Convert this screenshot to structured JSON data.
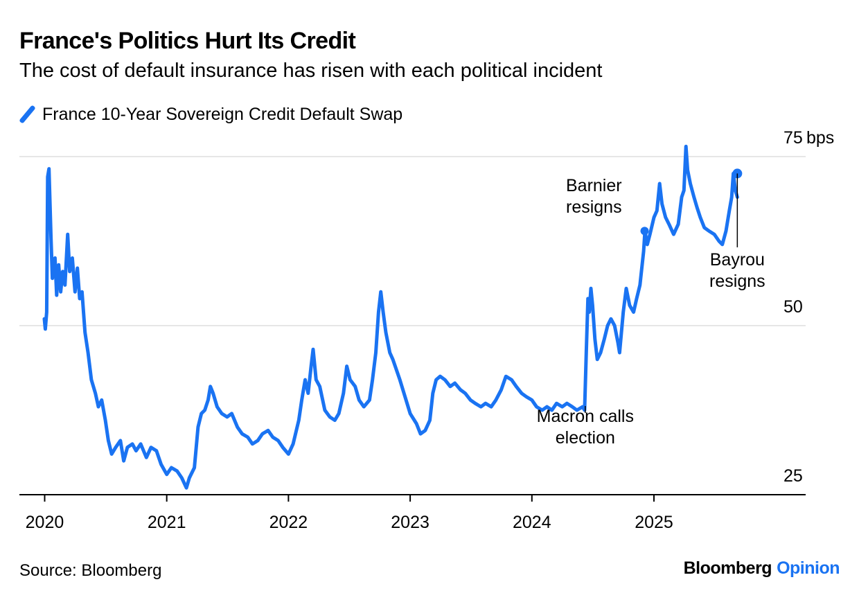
{
  "title": "France's Politics Hurt Its Credit",
  "subtitle": "The cost of default insurance has risen with each political incident",
  "source": "Source: Bloomberg",
  "brand": {
    "name": "Bloomberg",
    "section": "Opinion"
  },
  "colors": {
    "series": "#1a73f2",
    "brand_section": "#1a73f2",
    "grid": "#e6e6e6",
    "axis": "#000000",
    "text": "#000000"
  },
  "chart_data": {
    "type": "line",
    "title": "France's Politics Hurt Its Credit",
    "subtitle": "The cost of default insurance has risen with each political incident",
    "xlabel": "",
    "ylabel": "",
    "y_unit": "bps",
    "ylim": [
      25,
      75
    ],
    "xlim": [
      "2019-10-01",
      "2025-12-31"
    ],
    "y_ticks": [
      {
        "value": 75,
        "label": "75"
      },
      {
        "value": 50,
        "label": "50"
      },
      {
        "value": 25,
        "label": "25"
      }
    ],
    "x_ticks": [
      {
        "date": "2020-01-01",
        "label": "2020"
      },
      {
        "date": "2021-01-01",
        "label": "2021"
      },
      {
        "date": "2022-01-01",
        "label": "2022"
      },
      {
        "date": "2023-01-01",
        "label": "2023"
      },
      {
        "date": "2024-01-01",
        "label": "2024"
      },
      {
        "date": "2025-01-01",
        "label": "2025"
      }
    ],
    "grid": true,
    "legend_position": "top-left",
    "series": [
      {
        "name": "France 10-Year Sovereign Credit Default Swap",
        "color": "#1a73f2",
        "points": [
          [
            "2019-12-31",
            51
          ],
          [
            "2020-01-03",
            49.5
          ],
          [
            "2020-01-07",
            52
          ],
          [
            "2020-01-10",
            72
          ],
          [
            "2020-01-14",
            73.2
          ],
          [
            "2020-01-20",
            63
          ],
          [
            "2020-01-24",
            57
          ],
          [
            "2020-02-01",
            60
          ],
          [
            "2020-02-06",
            54.5
          ],
          [
            "2020-02-12",
            59
          ],
          [
            "2020-02-18",
            55
          ],
          [
            "2020-02-24",
            58
          ],
          [
            "2020-03-02",
            56
          ],
          [
            "2020-03-10",
            63.5
          ],
          [
            "2020-03-16",
            58
          ],
          [
            "2020-03-24",
            60
          ],
          [
            "2020-04-01",
            55
          ],
          [
            "2020-04-08",
            58.5
          ],
          [
            "2020-04-15",
            54
          ],
          [
            "2020-04-22",
            55
          ],
          [
            "2020-05-01",
            49
          ],
          [
            "2020-05-10",
            46
          ],
          [
            "2020-05-20",
            42
          ],
          [
            "2020-06-01",
            40
          ],
          [
            "2020-06-10",
            38
          ],
          [
            "2020-06-20",
            39
          ],
          [
            "2020-07-01",
            36
          ],
          [
            "2020-07-10",
            33
          ],
          [
            "2020-07-20",
            31
          ],
          [
            "2020-08-01",
            32
          ],
          [
            "2020-08-15",
            33
          ],
          [
            "2020-08-25",
            30
          ],
          [
            "2020-09-05",
            32
          ],
          [
            "2020-09-20",
            32.5
          ],
          [
            "2020-10-01",
            31.5
          ],
          [
            "2020-10-15",
            32.5
          ],
          [
            "2020-11-01",
            30.5
          ],
          [
            "2020-11-15",
            32
          ],
          [
            "2020-12-01",
            31.5
          ],
          [
            "2020-12-15",
            29.5
          ],
          [
            "2021-01-01",
            28
          ],
          [
            "2021-01-15",
            29
          ],
          [
            "2021-02-01",
            28.5
          ],
          [
            "2021-02-15",
            27.5
          ],
          [
            "2021-03-01",
            26
          ],
          [
            "2021-03-10",
            27.5
          ],
          [
            "2021-03-25",
            29
          ],
          [
            "2021-04-05",
            35
          ],
          [
            "2021-04-15",
            37
          ],
          [
            "2021-04-25",
            37.5
          ],
          [
            "2021-05-05",
            39
          ],
          [
            "2021-05-12",
            41
          ],
          [
            "2021-05-20",
            40
          ],
          [
            "2021-06-01",
            38
          ],
          [
            "2021-06-15",
            37
          ],
          [
            "2021-07-01",
            36.5
          ],
          [
            "2021-07-15",
            37
          ],
          [
            "2021-08-01",
            35
          ],
          [
            "2021-08-15",
            34
          ],
          [
            "2021-09-01",
            33.5
          ],
          [
            "2021-09-15",
            32.5
          ],
          [
            "2021-10-01",
            33
          ],
          [
            "2021-10-15",
            34
          ],
          [
            "2021-11-01",
            34.5
          ],
          [
            "2021-11-15",
            33.5
          ],
          [
            "2021-12-01",
            33
          ],
          [
            "2021-12-15",
            32
          ],
          [
            "2022-01-01",
            31
          ],
          [
            "2022-01-15",
            32.5
          ],
          [
            "2022-02-01",
            36
          ],
          [
            "2022-02-10",
            39
          ],
          [
            "2022-02-20",
            42
          ],
          [
            "2022-03-01",
            40
          ],
          [
            "2022-03-10",
            44
          ],
          [
            "2022-03-16",
            46.5
          ],
          [
            "2022-03-25",
            42
          ],
          [
            "2022-04-05",
            41
          ],
          [
            "2022-04-20",
            37.5
          ],
          [
            "2022-05-05",
            36.5
          ],
          [
            "2022-05-20",
            36
          ],
          [
            "2022-06-01",
            37
          ],
          [
            "2022-06-15",
            40
          ],
          [
            "2022-06-25",
            44
          ],
          [
            "2022-07-05",
            42
          ],
          [
            "2022-07-20",
            41
          ],
          [
            "2022-08-01",
            39
          ],
          [
            "2022-08-15",
            38
          ],
          [
            "2022-09-01",
            39
          ],
          [
            "2022-09-10",
            42
          ],
          [
            "2022-09-20",
            46
          ],
          [
            "2022-09-28",
            52
          ],
          [
            "2022-10-05",
            55
          ],
          [
            "2022-10-12",
            52
          ],
          [
            "2022-10-20",
            49
          ],
          [
            "2022-11-01",
            46
          ],
          [
            "2022-11-10",
            45
          ],
          [
            "2022-12-01",
            42
          ],
          [
            "2023-01-01",
            37
          ],
          [
            "2023-01-20",
            35.5
          ],
          [
            "2023-02-01",
            34
          ],
          [
            "2023-02-15",
            34.5
          ],
          [
            "2023-03-01",
            36
          ],
          [
            "2023-03-10",
            40
          ],
          [
            "2023-03-20",
            42
          ],
          [
            "2023-04-01",
            42.5
          ],
          [
            "2023-04-15",
            42
          ],
          [
            "2023-05-01",
            41
          ],
          [
            "2023-05-15",
            41.5
          ],
          [
            "2023-06-01",
            40.5
          ],
          [
            "2023-06-15",
            40
          ],
          [
            "2023-07-01",
            39
          ],
          [
            "2023-07-15",
            38.5
          ],
          [
            "2023-08-01",
            38
          ],
          [
            "2023-08-15",
            38.5
          ],
          [
            "2023-09-01",
            38
          ],
          [
            "2023-09-15",
            39
          ],
          [
            "2023-10-01",
            40.5
          ],
          [
            "2023-10-15",
            42.5
          ],
          [
            "2023-11-01",
            42
          ],
          [
            "2023-11-15",
            41
          ],
          [
            "2023-12-01",
            40
          ],
          [
            "2023-12-15",
            39.5
          ],
          [
            "2024-01-01",
            39
          ],
          [
            "2024-01-15",
            38
          ],
          [
            "2024-02-01",
            37.5
          ],
          [
            "2024-02-15",
            38
          ],
          [
            "2024-03-01",
            37.5
          ],
          [
            "2024-03-15",
            38.5
          ],
          [
            "2024-04-01",
            38
          ],
          [
            "2024-04-15",
            38.5
          ],
          [
            "2024-05-01",
            38
          ],
          [
            "2024-05-15",
            37.5
          ],
          [
            "2024-06-01",
            38
          ],
          [
            "2024-06-07",
            37.5
          ],
          [
            "2024-06-12",
            46
          ],
          [
            "2024-06-17",
            54
          ],
          [
            "2024-06-21",
            52
          ],
          [
            "2024-06-26",
            55.5
          ],
          [
            "2024-07-01",
            53
          ],
          [
            "2024-07-08",
            48
          ],
          [
            "2024-07-15",
            45
          ],
          [
            "2024-07-25",
            46
          ],
          [
            "2024-08-05",
            48
          ],
          [
            "2024-08-15",
            50
          ],
          [
            "2024-08-25",
            51
          ],
          [
            "2024-09-05",
            50
          ],
          [
            "2024-09-15",
            47.5
          ],
          [
            "2024-09-20",
            46
          ],
          [
            "2024-10-01",
            52
          ],
          [
            "2024-10-10",
            55.5
          ],
          [
            "2024-10-20",
            53
          ],
          [
            "2024-11-01",
            52
          ],
          [
            "2024-11-10",
            54
          ],
          [
            "2024-11-20",
            56
          ],
          [
            "2024-12-01",
            61
          ],
          [
            "2024-12-05",
            64
          ],
          [
            "2024-12-12",
            62
          ],
          [
            "2024-12-20",
            63.5
          ],
          [
            "2025-01-01",
            66
          ],
          [
            "2025-01-10",
            67
          ],
          [
            "2025-01-18",
            71
          ],
          [
            "2025-01-25",
            68
          ],
          [
            "2025-02-05",
            66
          ],
          [
            "2025-02-15",
            65
          ],
          [
            "2025-03-01",
            63.5
          ],
          [
            "2025-03-15",
            65
          ],
          [
            "2025-03-25",
            69
          ],
          [
            "2025-04-01",
            70
          ],
          [
            "2025-04-07",
            76.5
          ],
          [
            "2025-04-12",
            73
          ],
          [
            "2025-04-20",
            71
          ],
          [
            "2025-05-01",
            69
          ],
          [
            "2025-05-10",
            67.5
          ],
          [
            "2025-05-20",
            66
          ],
          [
            "2025-06-01",
            64.5
          ],
          [
            "2025-06-15",
            64
          ],
          [
            "2025-07-01",
            63.5
          ],
          [
            "2025-07-15",
            62.5
          ],
          [
            "2025-07-25",
            62
          ],
          [
            "2025-08-05",
            64
          ],
          [
            "2025-08-15",
            67
          ],
          [
            "2025-08-22",
            69
          ],
          [
            "2025-08-27",
            72.5
          ],
          [
            "2025-09-02",
            70
          ],
          [
            "2025-09-08",
            69
          ]
        ]
      }
    ],
    "annotations": [
      {
        "text": [
          "Barnier",
          "resigns"
        ],
        "date": "2024-12-04",
        "value": 64,
        "label_side": "left"
      },
      {
        "text": [
          "Bayrou",
          "resigns"
        ],
        "date": "2025-09-08",
        "value": 72.5,
        "label_side": "below"
      },
      {
        "text": [
          "Macron calls",
          "election"
        ],
        "date": "2024-06-09",
        "value": 37.5,
        "label_side": "below"
      }
    ]
  }
}
